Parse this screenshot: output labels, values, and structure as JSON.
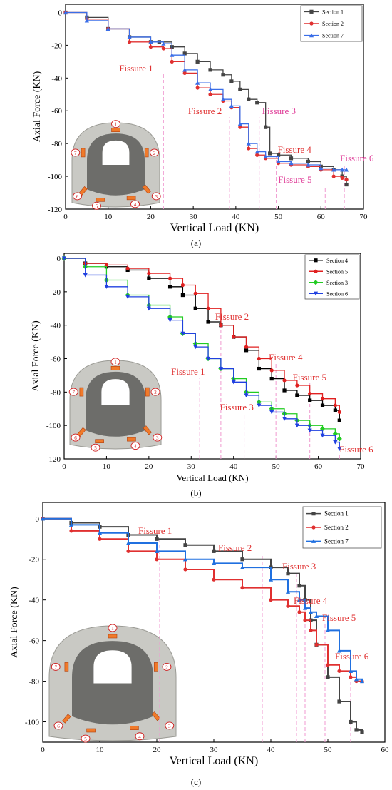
{
  "chart_data": [
    {
      "type": "line",
      "panel_label": "(a)",
      "xlabel": "Vertical Load (KN)",
      "ylabel": "Axial Force (KN)",
      "xlim": [
        0,
        70
      ],
      "ylim": [
        -120,
        5
      ],
      "xticks": [
        0,
        10,
        20,
        30,
        40,
        50,
        60,
        70
      ],
      "yticks": [
        0,
        -20,
        -40,
        -60,
        -80,
        -100,
        -120
      ],
      "legend_position": "top-right",
      "series": [
        {
          "name": "Section 1",
          "color": "#444444",
          "marker": "square",
          "x": [
            0,
            5,
            10,
            15,
            20,
            22,
            25,
            28,
            31,
            34,
            37,
            39,
            41,
            43,
            45,
            47,
            48,
            50,
            53,
            57,
            60,
            63,
            65,
            66
          ],
          "y": [
            0,
            -3,
            -10,
            -15,
            -18,
            -18,
            -21,
            -25,
            -30,
            -35,
            -38,
            -42,
            -47,
            -53,
            -55,
            -70,
            -86,
            -87,
            -89,
            -91,
            -94,
            -96,
            -100,
            -105
          ]
        },
        {
          "name": "Section 2",
          "color": "#e03030",
          "marker": "circle",
          "x": [
            0,
            5,
            10,
            15,
            20,
            23,
            25,
            28,
            31,
            34,
            37,
            39,
            41,
            43,
            45,
            47,
            50,
            53,
            57,
            60,
            63,
            65,
            66
          ],
          "y": [
            0,
            -4,
            -10,
            -18,
            -21,
            -22,
            -30,
            -37,
            -46,
            -50,
            -54,
            -58,
            -70,
            -83,
            -87,
            -89,
            -92,
            -93,
            -94,
            -96,
            -100,
            -101,
            -102
          ]
        },
        {
          "name": "Section 7",
          "color": "#3a6ee8",
          "marker": "triangle",
          "x": [
            0,
            5,
            10,
            15,
            20,
            23,
            25,
            28,
            31,
            34,
            37,
            39,
            41,
            43,
            45,
            47,
            50,
            53,
            57,
            60,
            63,
            65,
            66
          ],
          "y": [
            0,
            -5,
            -10,
            -15,
            -18,
            -19,
            -26,
            -35,
            -43,
            -47,
            -53,
            -57,
            -68,
            -80,
            -85,
            -88,
            -91,
            -92,
            -93,
            -95,
            -96,
            -96,
            -96
          ]
        }
      ],
      "annotations": [
        {
          "text": "Fissure 1",
          "x": 23,
          "color": "#e03030"
        },
        {
          "text": "Fissure 2",
          "x": 38.5,
          "color": "#e03030"
        },
        {
          "text": "Fissure 3",
          "x": 45.5,
          "color": "#e0409a"
        },
        {
          "text": "Fissure 4",
          "x": 49.5,
          "color": "#e03030"
        },
        {
          "text": "Fissure 5",
          "x": 61,
          "color": "#e0409a"
        },
        {
          "text": "Fissure 6",
          "x": 65.5,
          "color": "#e0409a"
        }
      ]
    },
    {
      "type": "line",
      "panel_label": "(b)",
      "xlabel": "Vertical Load (KN)",
      "ylabel": "Axial Force (KN)",
      "xlim": [
        0,
        70
      ],
      "ylim": [
        -120,
        3
      ],
      "xticks": [
        0,
        10,
        20,
        30,
        40,
        50,
        60,
        70
      ],
      "yticks": [
        0,
        -20,
        -40,
        -60,
        -80,
        -100,
        -120
      ],
      "legend_position": "top-right",
      "series": [
        {
          "name": "Section 4",
          "color": "#000000",
          "marker": "square",
          "x": [
            0,
            5,
            10,
            15,
            20,
            25,
            28,
            31,
            34,
            37,
            40,
            43,
            46,
            49,
            52,
            55,
            58,
            61,
            64,
            65
          ],
          "y": [
            0,
            -3,
            -5,
            -7,
            -12,
            -17,
            -22,
            -30,
            -38,
            -40,
            -47,
            -55,
            -66,
            -72,
            -79,
            -82,
            -85,
            -88,
            -91,
            -97
          ]
        },
        {
          "name": "Section 5",
          "color": "#e02020",
          "marker": "circle",
          "x": [
            0,
            5,
            10,
            15,
            20,
            25,
            28,
            31,
            34,
            37,
            40,
            43,
            46,
            49,
            52,
            55,
            58,
            61,
            64,
            65
          ],
          "y": [
            0,
            -3,
            -4,
            -6,
            -9,
            -12,
            -16,
            -21,
            -30,
            -40,
            -47,
            -53,
            -60,
            -67,
            -73,
            -76,
            -81,
            -84,
            -88,
            -92
          ]
        },
        {
          "name": "Section 3",
          "color": "#22cc22",
          "marker": "diamond",
          "x": [
            0,
            5,
            10,
            15,
            20,
            25,
            28,
            31,
            34,
            37,
            40,
            43,
            46,
            49,
            52,
            55,
            58,
            61,
            64,
            65
          ],
          "y": [
            0,
            -5,
            -13,
            -22,
            -28,
            -35,
            -45,
            -51,
            -60,
            -66,
            -72,
            -80,
            -86,
            -90,
            -93,
            -97,
            -100,
            -102,
            -105,
            -108
          ]
        },
        {
          "name": "Section 6",
          "color": "#2040e0",
          "marker": "triangle-down",
          "x": [
            0,
            5,
            10,
            15,
            20,
            25,
            28,
            31,
            34,
            37,
            40,
            43,
            46,
            49,
            52,
            55,
            58,
            61,
            64,
            65
          ],
          "y": [
            0,
            -10,
            -17,
            -23,
            -30,
            -37,
            -45,
            -53,
            -60,
            -66,
            -74,
            -82,
            -88,
            -92,
            -96,
            -100,
            -103,
            -106,
            -110,
            -114
          ]
        }
      ],
      "annotations": [
        {
          "text": "Fissure 1",
          "x": 32,
          "color": "#e03030"
        },
        {
          "text": "Fissure 2",
          "x": 37,
          "color": "#e03030"
        },
        {
          "text": "Fissure 3",
          "x": 42.5,
          "color": "#e03030"
        },
        {
          "text": "Fissure 4",
          "x": 50,
          "color": "#e03030"
        },
        {
          "text": "Fissure 5",
          "x": 58,
          "color": "#e03030"
        },
        {
          "text": "Fissure 6",
          "x": 65,
          "color": "#e03030"
        }
      ]
    },
    {
      "type": "line",
      "panel_label": "(c)",
      "xlabel": "Vertical Load (KN)",
      "ylabel": "Axial Force (KN)",
      "xlim": [
        0,
        60
      ],
      "ylim": [
        -110,
        8
      ],
      "xticks": [
        0,
        10,
        20,
        30,
        40,
        50,
        60
      ],
      "yticks": [
        0,
        -20,
        -40,
        -60,
        -80,
        -100
      ],
      "legend_position": "top-right",
      "series": [
        {
          "name": "Section 1",
          "color": "#444444",
          "marker": "square",
          "x": [
            0,
            5,
            10,
            15,
            20,
            25,
            30,
            35,
            40,
            43,
            45,
            46,
            47,
            48,
            50,
            52,
            54,
            55,
            56
          ],
          "y": [
            0,
            -2,
            -4,
            -8,
            -10,
            -13,
            -16,
            -20,
            -24,
            -27,
            -33,
            -40,
            -50,
            -62,
            -78,
            -90,
            -100,
            -104,
            -105
          ]
        },
        {
          "name": "Section 2",
          "color": "#e03030",
          "marker": "circle",
          "x": [
            0,
            5,
            10,
            15,
            20,
            25,
            30,
            35,
            40,
            43,
            45,
            46,
            47,
            48,
            50,
            52,
            54,
            55,
            56
          ],
          "y": [
            0,
            -6,
            -10,
            -16,
            -20,
            -25,
            -30,
            -34,
            -40,
            -43,
            -46,
            -50,
            -55,
            -62,
            -72,
            -75,
            -78,
            -80,
            -80
          ]
        },
        {
          "name": "Section 7",
          "color": "#2070e0",
          "marker": "triangle",
          "x": [
            0,
            5,
            10,
            15,
            20,
            25,
            30,
            35,
            40,
            43,
            45,
            46,
            47,
            48,
            50,
            52,
            54,
            55,
            56
          ],
          "y": [
            0,
            -3,
            -7,
            -12,
            -16,
            -20,
            -22,
            -24,
            -30,
            -36,
            -40,
            -44,
            -46,
            -48,
            -55,
            -65,
            -75,
            -79,
            -80
          ]
        }
      ],
      "annotations": [
        {
          "text": "Fissure 1",
          "x": 20.5,
          "color": "#e03030"
        },
        {
          "text": "Fissure 2",
          "x": 38.5,
          "color": "#e03030"
        },
        {
          "text": "Fissure 3",
          "x": 44.5,
          "color": "#e03030"
        },
        {
          "text": "Fissure 4",
          "x": 46,
          "color": "#e03030"
        },
        {
          "text": "Fissure 5",
          "x": 49.5,
          "color": "#e03030"
        },
        {
          "text": "Fissure 6",
          "x": 54,
          "color": "#e03030"
        }
      ]
    }
  ],
  "inset": {
    "badges": [
      "1",
      "2",
      "3",
      "4",
      "5",
      "6",
      "7"
    ]
  }
}
